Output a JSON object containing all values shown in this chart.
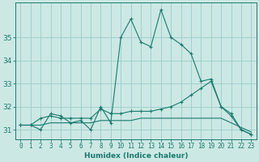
{
  "xlabel": "Humidex (Indice chaleur)",
  "bg_color": "#cce8e4",
  "grid_color": "#99cccc",
  "line_color": "#1a7a6e",
  "x": [
    0,
    1,
    2,
    3,
    4,
    5,
    6,
    7,
    8,
    9,
    10,
    11,
    12,
    13,
    14,
    15,
    16,
    17,
    18,
    19,
    20,
    21,
    22,
    23
  ],
  "line1": [
    31.2,
    31.2,
    31.0,
    31.7,
    31.6,
    31.3,
    31.4,
    31.0,
    32.0,
    31.3,
    35.0,
    35.8,
    34.8,
    34.6,
    36.2,
    35.0,
    34.7,
    34.3,
    33.1,
    33.2,
    32.0,
    31.6,
    31.0,
    30.8
  ],
  "line2": [
    31.2,
    31.2,
    31.5,
    31.6,
    31.5,
    31.5,
    31.5,
    31.5,
    31.9,
    31.7,
    31.7,
    31.8,
    31.8,
    31.8,
    31.9,
    32.0,
    32.2,
    32.5,
    32.8,
    33.1,
    32.0,
    31.7,
    31.0,
    30.8
  ],
  "line3": [
    31.2,
    31.2,
    31.2,
    31.3,
    31.3,
    31.3,
    31.3,
    31.3,
    31.4,
    31.4,
    31.4,
    31.4,
    31.5,
    31.5,
    31.5,
    31.5,
    31.5,
    31.5,
    31.5,
    31.5,
    31.5,
    31.3,
    31.1,
    30.9
  ],
  "ylim": [
    30.6,
    36.5
  ],
  "yticks": [
    31,
    32,
    33,
    34,
    35
  ],
  "xlim": [
    -0.5,
    23.5
  ],
  "figsize": [
    3.2,
    2.0
  ],
  "dpi": 100
}
